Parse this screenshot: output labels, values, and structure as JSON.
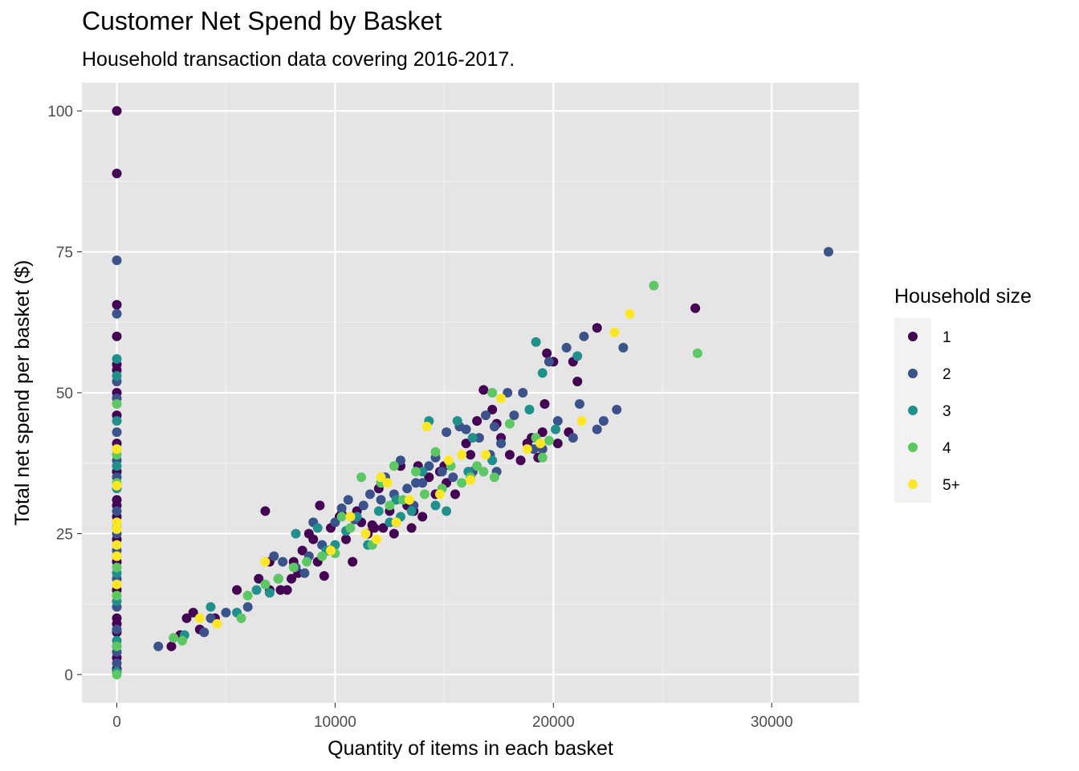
{
  "chart_data": {
    "type": "scatter",
    "title": "Customer Net Spend by Basket",
    "subtitle": "Household transaction data covering 2016-2017.",
    "xlabel": "Quantity of items in each basket",
    "ylabel": "Total net spend per basket ($)",
    "xlim": [
      -1600,
      34000
    ],
    "ylim": [
      -5,
      105
    ],
    "x_ticks": [
      0,
      10000,
      20000,
      30000
    ],
    "x_tick_labels": [
      "0",
      "10000",
      "20000",
      "30000"
    ],
    "y_ticks": [
      0,
      25,
      50,
      75,
      100
    ],
    "y_tick_labels": [
      "0",
      "25",
      "50",
      "75",
      "100"
    ],
    "grid": true,
    "legend": {
      "title": "Household size",
      "placement": "right",
      "entries": [
        {
          "label": "1",
          "color": "#440154"
        },
        {
          "label": "2",
          "color": "#3b528b"
        },
        {
          "label": "3",
          "color": "#21908c"
        },
        {
          "label": "4",
          "color": "#5dc863"
        },
        {
          "label": "5+",
          "color": "#fde725"
        }
      ]
    },
    "series": [
      {
        "name": "1",
        "color": "#440154",
        "points": [
          [
            0,
            100
          ],
          [
            0,
            88.9
          ],
          [
            0,
            65.6
          ],
          [
            0,
            60
          ],
          [
            0,
            55
          ],
          [
            0,
            54
          ],
          [
            0,
            50
          ],
          [
            0,
            46
          ],
          [
            0,
            41
          ],
          [
            0,
            36
          ],
          [
            0,
            31
          ],
          [
            0,
            30
          ],
          [
            0,
            28
          ],
          [
            0,
            24
          ],
          [
            0,
            20
          ],
          [
            0,
            15
          ],
          [
            0,
            10
          ],
          [
            0,
            9
          ],
          [
            0,
            7.5
          ],
          [
            0,
            5
          ],
          [
            0,
            3
          ],
          [
            0,
            1
          ],
          [
            2500,
            5
          ],
          [
            2900,
            7
          ],
          [
            3200,
            10
          ],
          [
            3500,
            11
          ],
          [
            3800,
            8
          ],
          [
            4500,
            10
          ],
          [
            5500,
            15
          ],
          [
            6500,
            17
          ],
          [
            6800,
            29
          ],
          [
            7000,
            15
          ],
          [
            7400,
            17
          ],
          [
            7500,
            15
          ],
          [
            7800,
            15
          ],
          [
            8100,
            20
          ],
          [
            8300,
            18
          ],
          [
            8500,
            22
          ],
          [
            8800,
            25
          ],
          [
            9000,
            24
          ],
          [
            9200,
            20
          ],
          [
            9500,
            17.5
          ],
          [
            9800,
            26
          ],
          [
            10200,
            28
          ],
          [
            10500,
            24
          ],
          [
            10800,
            20
          ],
          [
            11000,
            29
          ],
          [
            11200,
            27
          ],
          [
            11500,
            25
          ],
          [
            11800,
            26
          ],
          [
            12000,
            33
          ],
          [
            12200,
            26
          ],
          [
            12500,
            29
          ],
          [
            12800,
            27
          ],
          [
            13000,
            37
          ],
          [
            13300,
            30
          ],
          [
            13600,
            29
          ],
          [
            13800,
            37
          ],
          [
            14000,
            28
          ],
          [
            14300,
            35
          ],
          [
            14600,
            32
          ],
          [
            14800,
            36
          ],
          [
            15000,
            37
          ],
          [
            15500,
            32
          ],
          [
            16000,
            41
          ],
          [
            16200,
            39
          ],
          [
            16500,
            45
          ],
          [
            16800,
            50.5
          ],
          [
            17200,
            47
          ],
          [
            17600,
            42
          ],
          [
            18000,
            39
          ],
          [
            18500,
            38
          ],
          [
            18800,
            41
          ],
          [
            19000,
            42
          ],
          [
            19300,
            38.5
          ],
          [
            19500,
            43
          ],
          [
            19600,
            48
          ],
          [
            19700,
            57
          ],
          [
            20000,
            55.5
          ],
          [
            20200,
            41
          ],
          [
            20700,
            43
          ],
          [
            20900,
            55.5
          ],
          [
            21100,
            52
          ],
          [
            22000,
            61.5
          ],
          [
            26500,
            65
          ],
          [
            7000,
            20
          ],
          [
            8000,
            17
          ],
          [
            9300,
            30
          ],
          [
            10300,
            28.5
          ],
          [
            11700,
            26.5
          ],
          [
            12700,
            25
          ],
          [
            13500,
            26
          ],
          [
            15100,
            34
          ],
          [
            16300,
            36
          ],
          [
            17400,
            44.5
          ]
        ]
      },
      {
        "name": "2",
        "color": "#3b528b",
        "points": [
          [
            0,
            73.5
          ],
          [
            0,
            64
          ],
          [
            0,
            52
          ],
          [
            0,
            49
          ],
          [
            0,
            43
          ],
          [
            0,
            38
          ],
          [
            0,
            35
          ],
          [
            0,
            29
          ],
          [
            0,
            25
          ],
          [
            0,
            22
          ],
          [
            0,
            17
          ],
          [
            0,
            12
          ],
          [
            0,
            8
          ],
          [
            0,
            4
          ],
          [
            0,
            2
          ],
          [
            1900,
            5
          ],
          [
            4000,
            7.5
          ],
          [
            4300,
            10
          ],
          [
            5000,
            11
          ],
          [
            6000,
            12
          ],
          [
            7200,
            21
          ],
          [
            7600,
            20
          ],
          [
            8200,
            19
          ],
          [
            8600,
            18
          ],
          [
            8800,
            21
          ],
          [
            9000,
            27
          ],
          [
            9400,
            23
          ],
          [
            9700,
            22
          ],
          [
            10000,
            27
          ],
          [
            10300,
            29.5
          ],
          [
            10600,
            31
          ],
          [
            10900,
            27.5
          ],
          [
            11300,
            30
          ],
          [
            11600,
            32
          ],
          [
            12100,
            31
          ],
          [
            12300,
            35
          ],
          [
            12700,
            32
          ],
          [
            13000,
            38
          ],
          [
            13300,
            33
          ],
          [
            13700,
            34
          ],
          [
            14000,
            34
          ],
          [
            14300,
            37
          ],
          [
            14600,
            38.5
          ],
          [
            14900,
            36
          ],
          [
            15100,
            43
          ],
          [
            15400,
            35
          ],
          [
            15700,
            44
          ],
          [
            16000,
            43.5
          ],
          [
            16300,
            36
          ],
          [
            16600,
            42
          ],
          [
            16900,
            46
          ],
          [
            17100,
            39
          ],
          [
            17300,
            44
          ],
          [
            17600,
            41
          ],
          [
            17900,
            50
          ],
          [
            18200,
            46
          ],
          [
            18600,
            50
          ],
          [
            19100,
            40
          ],
          [
            19500,
            40
          ],
          [
            19800,
            55.5
          ],
          [
            20200,
            45
          ],
          [
            20600,
            58
          ],
          [
            20900,
            42
          ],
          [
            21200,
            48
          ],
          [
            21400,
            60
          ],
          [
            22000,
            43.5
          ],
          [
            22300,
            45
          ],
          [
            22900,
            47
          ],
          [
            23200,
            58
          ],
          [
            32600,
            75
          ],
          [
            17400,
            36
          ],
          [
            13600,
            30
          ]
        ]
      },
      {
        "name": "3",
        "color": "#21908c",
        "points": [
          [
            0,
            56
          ],
          [
            0,
            53
          ],
          [
            0,
            45
          ],
          [
            0,
            40
          ],
          [
            0,
            37
          ],
          [
            0,
            33
          ],
          [
            0,
            27
          ],
          [
            0,
            21
          ],
          [
            0,
            18
          ],
          [
            0,
            13
          ],
          [
            0,
            6
          ],
          [
            0,
            0.5
          ],
          [
            3100,
            7
          ],
          [
            4300,
            12
          ],
          [
            5500,
            11
          ],
          [
            6400,
            15
          ],
          [
            7000,
            14.5
          ],
          [
            8200,
            25
          ],
          [
            9200,
            26
          ],
          [
            10000,
            23
          ],
          [
            10500,
            25.5
          ],
          [
            11000,
            28
          ],
          [
            11500,
            23
          ],
          [
            12000,
            29
          ],
          [
            12500,
            27
          ],
          [
            13000,
            28
          ],
          [
            13500,
            29
          ],
          [
            14000,
            36
          ],
          [
            14600,
            30
          ],
          [
            15100,
            29
          ],
          [
            15600,
            45
          ],
          [
            16100,
            36
          ],
          [
            16300,
            42
          ],
          [
            17200,
            38
          ],
          [
            18900,
            47
          ],
          [
            19200,
            59
          ],
          [
            19500,
            53.5
          ],
          [
            20100,
            43.5
          ],
          [
            21100,
            56.5
          ],
          [
            14300,
            45
          ],
          [
            12800,
            31
          ],
          [
            9600,
            22
          ]
        ]
      },
      {
        "name": "4",
        "color": "#5dc863",
        "points": [
          [
            0,
            48
          ],
          [
            0,
            39
          ],
          [
            0,
            34
          ],
          [
            0,
            26
          ],
          [
            0,
            19
          ],
          [
            0,
            14
          ],
          [
            0,
            5
          ],
          [
            0,
            0
          ],
          [
            2600,
            6.5
          ],
          [
            3000,
            6
          ],
          [
            5700,
            10
          ],
          [
            6000,
            14
          ],
          [
            6800,
            16
          ],
          [
            7400,
            17
          ],
          [
            8100,
            19
          ],
          [
            8700,
            20
          ],
          [
            9400,
            21
          ],
          [
            10000,
            21.5
          ],
          [
            10700,
            26
          ],
          [
            11200,
            35
          ],
          [
            11700,
            23
          ],
          [
            12100,
            34
          ],
          [
            12500,
            30
          ],
          [
            13100,
            31
          ],
          [
            13700,
            36
          ],
          [
            14100,
            32
          ],
          [
            14600,
            39.5
          ],
          [
            14900,
            33
          ],
          [
            15300,
            37
          ],
          [
            15800,
            34
          ],
          [
            16200,
            35
          ],
          [
            16500,
            37
          ],
          [
            16800,
            36
          ],
          [
            17200,
            50
          ],
          [
            17300,
            35
          ],
          [
            18000,
            44.5
          ],
          [
            19200,
            42
          ],
          [
            19500,
            38.5
          ],
          [
            19800,
            41.5
          ],
          [
            24600,
            69
          ],
          [
            26600,
            57
          ],
          [
            10300,
            28
          ],
          [
            12700,
            37
          ]
        ]
      },
      {
        "name": "5+",
        "color": "#fde725",
        "points": [
          [
            0,
            40
          ],
          [
            0,
            33.5
          ],
          [
            0,
            27
          ],
          [
            0,
            25.8
          ],
          [
            0,
            23
          ],
          [
            0,
            21
          ],
          [
            0,
            16
          ],
          [
            3800,
            10
          ],
          [
            4600,
            9
          ],
          [
            6800,
            20
          ],
          [
            9800,
            22
          ],
          [
            10700,
            28
          ],
          [
            11400,
            25
          ],
          [
            11900,
            24
          ],
          [
            12400,
            34
          ],
          [
            12800,
            27
          ],
          [
            13400,
            31
          ],
          [
            14200,
            44
          ],
          [
            14800,
            32
          ],
          [
            15200,
            38
          ],
          [
            15800,
            39
          ],
          [
            16200,
            34.5
          ],
          [
            16900,
            39
          ],
          [
            17600,
            49
          ],
          [
            18800,
            40
          ],
          [
            19400,
            41
          ],
          [
            21300,
            45
          ],
          [
            22800,
            60.7
          ],
          [
            23500,
            64
          ],
          [
            12100,
            35
          ]
        ]
      }
    ]
  }
}
